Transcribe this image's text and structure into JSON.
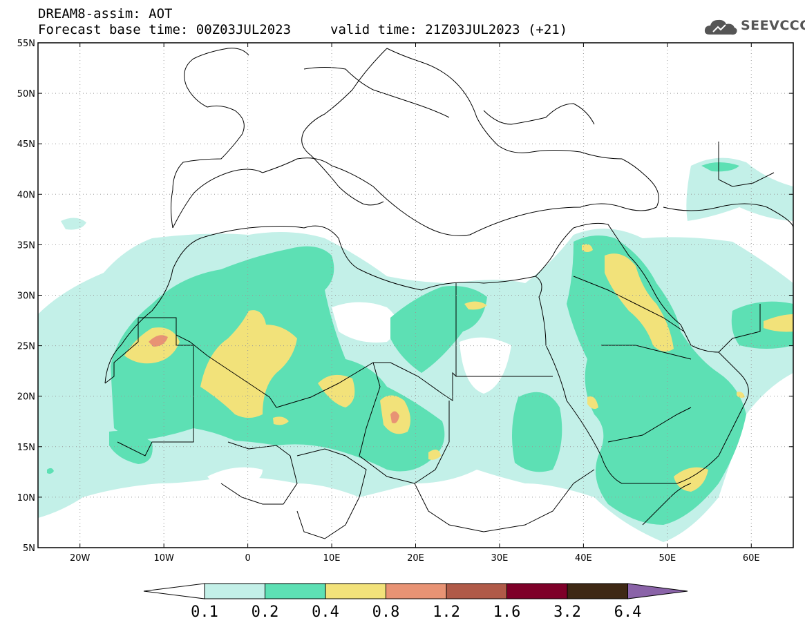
{
  "header": {
    "title": "DREAM8-assim: AOT",
    "base_time": "Forecast base time: 00Z03JUL2023",
    "valid_time": "valid time: 21Z03JUL2023 (+21)"
  },
  "logo": {
    "text": "SEEVCCC",
    "icon": "cloud-icon"
  },
  "map": {
    "lat_labels": [
      "55N",
      "50N",
      "45N",
      "40N",
      "35N",
      "30N",
      "25N",
      "20N",
      "15N",
      "10N",
      "5N"
    ],
    "lon_labels": [
      "20W",
      "10W",
      "0",
      "10E",
      "20E",
      "30E",
      "40E",
      "50E",
      "60E"
    ],
    "grid": "dotted"
  },
  "colorbar": {
    "levels": [
      "0.1",
      "0.2",
      "0.4",
      "0.8",
      "1.2",
      "1.6",
      "3.2",
      "6.4"
    ],
    "colors": [
      "#ffffff",
      "#c3f0e8",
      "#5de0b4",
      "#f2e27a",
      "#e89374",
      "#b05a48",
      "#7e0029",
      "#3e2814",
      "#8a63a8"
    ]
  },
  "aot_colors": {
    "c01": "#c3f0e8",
    "c02": "#5de0b4",
    "c04": "#f2e27a",
    "c08": "#e89374"
  }
}
